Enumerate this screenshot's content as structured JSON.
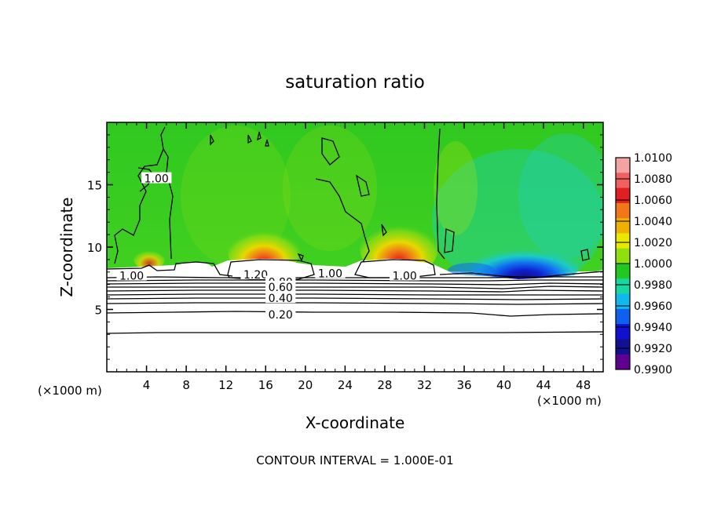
{
  "chart_data": {
    "type": "heatmap",
    "title": "saturation ratio",
    "xlabel": "X-coordinate",
    "ylabel": "Z-coordinate",
    "x_unit": "(×1000 m)",
    "x_unit_right": "(×1000 m)",
    "footer": "CONTOUR INTERVAL = 1.000E-01",
    "xlim": [
      0,
      50
    ],
    "ylim": [
      0,
      20
    ],
    "x_ticks": [
      4,
      8,
      12,
      16,
      20,
      24,
      28,
      32,
      36,
      40,
      44,
      48
    ],
    "y_ticks": [
      5,
      10,
      15
    ],
    "colorbar": {
      "levels": [
        "1.0100",
        "1.0080",
        "1.0060",
        "1.0040",
        "1.0020",
        "1.0000",
        "0.9980",
        "0.9960",
        "0.9940",
        "0.9920",
        "0.9900"
      ],
      "colors": [
        "#f4a3a3",
        "#f06060",
        "#e02020",
        "#f07818",
        "#f0b000",
        "#e8e800",
        "#90e010",
        "#20c820",
        "#18d8a0",
        "#10b8f0",
        "#1060f0",
        "#1010d0",
        "#101090",
        "#600090"
      ]
    },
    "contour_labels": [
      {
        "text": "1.00",
        "x": 5,
        "z": 15.5
      },
      {
        "text": "1.00",
        "x": 2.5,
        "z": 7.7
      },
      {
        "text": "1.20",
        "x": 15,
        "z": 7.8
      },
      {
        "text": "1.00",
        "x": 22.5,
        "z": 7.9
      },
      {
        "text": "1.00",
        "x": 30,
        "z": 7.7
      },
      {
        "text": "0.80",
        "x": 17.5,
        "z": 7.2
      },
      {
        "text": "0.60",
        "x": 17.5,
        "z": 6.8
      },
      {
        "text": "0.40",
        "x": 17.5,
        "z": 5.9
      },
      {
        "text": "0.20",
        "x": 17.5,
        "z": 4.6
      }
    ],
    "contour_levels_below_cloud": [
      {
        "value": "0.20",
        "z": 4.75
      },
      {
        "value": "0.40",
        "z": 5.9
      },
      {
        "value": "0.60",
        "z": 6.6
      },
      {
        "value": "0.80",
        "z": 7.1
      }
    ],
    "background_level": "1.0000",
    "notes": "Cloud region z≈8–20 km shaded near 1.0000; supersaturation maxima near x≈14–18 and x≈26–32 at z≈9–10; subsaturation minimum near x≈38–46 at z≈8–10."
  }
}
